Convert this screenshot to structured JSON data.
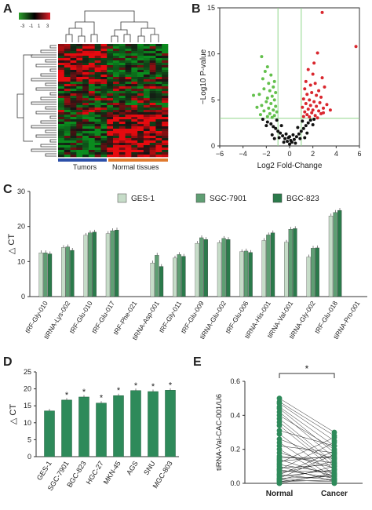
{
  "panels": {
    "A": "A",
    "B": "B",
    "C": "C",
    "D": "D",
    "E": "E"
  },
  "colors": {
    "gesi": "#c6dcc8",
    "sgc": "#5f9e73",
    "bgc": "#2b7a4b",
    "bar_d": "#2e8a5a",
    "volcano_green": "#63c04c",
    "volcano_red": "#d9272e",
    "volcano_black": "#111111",
    "threshold": "#8fd68a",
    "dot_e": "#2e8a5a",
    "tumor_bar": "#2c4fa8",
    "normal_bar": "#e07a2e"
  },
  "heatmap": {
    "colorkey_ticks": [
      "-3",
      "-1",
      "1",
      "3"
    ],
    "group_labels": [
      "Tumors",
      "Normal tissues"
    ]
  },
  "chart_data": [
    {
      "panel": "A",
      "type": "heatmap",
      "legend": [
        "-3",
        "-1",
        "1",
        "3"
      ],
      "groups": [
        "Tumors",
        "Normal tissues"
      ]
    },
    {
      "panel": "B",
      "type": "scatter",
      "xlabel": "Log2 Fold-Change",
      "ylabel": "−Log10 P-value",
      "xlim": [
        -6,
        6
      ],
      "ylim": [
        0,
        15
      ],
      "xticks": [
        "−6",
        "−4",
        "−2",
        "0",
        "2",
        "4",
        "6"
      ],
      "yticks": [
        "0",
        "5",
        "10",
        "15"
      ],
      "thresholds": {
        "x": [
          -1,
          1
        ],
        "y": 3
      },
      "series": [
        {
          "color": "green",
          "points": [
            [
              -2.4,
              9.7
            ],
            [
              -1.9,
              8.6
            ],
            [
              -2.1,
              8.1
            ],
            [
              -1.6,
              7.7
            ],
            [
              -2.3,
              7.3
            ],
            [
              -1.3,
              7.0
            ],
            [
              -1.8,
              6.8
            ],
            [
              -1.4,
              6.4
            ],
            [
              -2.2,
              6.2
            ],
            [
              -1.7,
              6.0
            ],
            [
              -1.2,
              5.8
            ],
            [
              -2.6,
              5.6
            ],
            [
              -1.5,
              5.4
            ],
            [
              -1.9,
              5.2
            ],
            [
              -1.3,
              5.0
            ],
            [
              -2.0,
              4.8
            ],
            [
              -1.6,
              4.6
            ],
            [
              -2.4,
              4.4
            ],
            [
              -1.2,
              4.3
            ],
            [
              -1.8,
              4.1
            ],
            [
              -1.4,
              3.9
            ],
            [
              -2.2,
              3.8
            ],
            [
              -1.1,
              3.7
            ],
            [
              -1.7,
              3.5
            ],
            [
              -2.5,
              3.4
            ],
            [
              -1.3,
              3.3
            ],
            [
              -1.9,
              3.2
            ],
            [
              -3.1,
              5.5
            ],
            [
              -2.8,
              4.2
            ],
            [
              -1.5,
              3.1
            ]
          ]
        },
        {
          "color": "red",
          "points": [
            [
              2.8,
              14.5
            ],
            [
              5.7,
              10.8
            ],
            [
              2.4,
              10.1
            ],
            [
              2.1,
              9.0
            ],
            [
              1.6,
              8.3
            ],
            [
              2.0,
              7.8
            ],
            [
              2.8,
              7.4
            ],
            [
              1.4,
              7.0
            ],
            [
              2.2,
              6.8
            ],
            [
              1.8,
              6.6
            ],
            [
              3.0,
              6.4
            ],
            [
              1.3,
              6.2
            ],
            [
              2.5,
              6.0
            ],
            [
              1.9,
              5.8
            ],
            [
              1.5,
              5.6
            ],
            [
              2.3,
              5.5
            ],
            [
              2.7,
              5.3
            ],
            [
              1.2,
              5.1
            ],
            [
              1.7,
              5.0
            ],
            [
              2.1,
              4.8
            ],
            [
              2.6,
              4.7
            ],
            [
              1.4,
              4.6
            ],
            [
              3.2,
              4.5
            ],
            [
              1.8,
              4.4
            ],
            [
              2.3,
              4.3
            ],
            [
              1.1,
              4.2
            ],
            [
              2.9,
              4.1
            ],
            [
              1.6,
              4.0
            ],
            [
              2.0,
              3.9
            ],
            [
              2.5,
              3.8
            ],
            [
              1.3,
              3.7
            ],
            [
              1.9,
              3.6
            ],
            [
              2.7,
              3.5
            ],
            [
              1.5,
              3.4
            ],
            [
              2.2,
              3.3
            ],
            [
              1.2,
              3.2
            ],
            [
              3.5,
              3.9
            ],
            [
              1.7,
              3.15
            ],
            [
              2.4,
              3.05
            ],
            [
              2.9,
              3.6
            ]
          ]
        },
        {
          "color": "black",
          "points": [
            [
              -2.3,
              2.9
            ],
            [
              -1.9,
              2.6
            ],
            [
              -1.6,
              2.4
            ],
            [
              -1.4,
              2.1
            ],
            [
              -1.2,
              1.9
            ],
            [
              -1.0,
              1.6
            ],
            [
              -0.8,
              1.4
            ],
            [
              -0.6,
              1.1
            ],
            [
              -0.4,
              0.8
            ],
            [
              -0.2,
              0.5
            ],
            [
              0.0,
              0.2
            ],
            [
              0.2,
              0.4
            ],
            [
              0.4,
              0.7
            ],
            [
              0.6,
              1.0
            ],
            [
              0.8,
              1.3
            ],
            [
              1.0,
              1.6
            ],
            [
              1.2,
              1.9
            ],
            [
              1.4,
              2.2
            ],
            [
              1.6,
              2.5
            ],
            [
              1.8,
              2.8
            ],
            [
              2.1,
              2.9
            ],
            [
              -1.1,
              2.8
            ],
            [
              -0.7,
              2.2
            ],
            [
              -0.3,
              1.3
            ],
            [
              0.3,
              1.2
            ],
            [
              0.7,
              2.0
            ],
            [
              1.1,
              2.7
            ],
            [
              -0.9,
              0.9
            ],
            [
              0.9,
              0.8
            ],
            [
              -0.5,
              0.4
            ],
            [
              0.5,
              0.3
            ],
            [
              -1.5,
              1.2
            ],
            [
              1.5,
              1.4
            ],
            [
              -2.0,
              2.2
            ],
            [
              2.0,
              2.3
            ],
            [
              -0.1,
              0.9
            ],
            [
              0.1,
              0.6
            ],
            [
              -1.3,
              0.8
            ],
            [
              1.3,
              0.9
            ],
            [
              0.0,
              1.0
            ]
          ]
        }
      ]
    },
    {
      "panel": "C",
      "type": "bar",
      "ylabel": "△ CT",
      "ylim": [
        0,
        30
      ],
      "yticks": [
        "0",
        "10",
        "20",
        "30"
      ],
      "categories": [
        "tRF-Gly-010",
        "tiRNA-Lys-002",
        "tRF-Glu-010",
        "tRF-Glu-017",
        "tRF-Phe-021",
        "tiRNA-Asp-001",
        "tRF-Gly-011",
        "tRF-Glu-009",
        "tiRNA-Glu-002",
        "tRF-Glu-006",
        "tiRNA-His-001",
        "tiRNA-Val-001",
        "tiRNA-Gly-002",
        "tRF-Glu-018",
        "tiRNA-Pro-001"
      ],
      "series": [
        {
          "name": "GES-1",
          "values": [
            12.5,
            14.0,
            17.5,
            18.0,
            0,
            9.6,
            11.0,
            15.2,
            15.4,
            12.8,
            16.0,
            15.5,
            11.3,
            23.0,
            0
          ]
        },
        {
          "name": "SGC-7901",
          "values": [
            12.5,
            14.2,
            18.2,
            18.8,
            0,
            11.8,
            12.0,
            16.8,
            16.6,
            13.0,
            17.6,
            19.2,
            13.8,
            24.0,
            0
          ]
        },
        {
          "name": "BGC-823",
          "values": [
            12.2,
            13.2,
            18.4,
            19.0,
            0,
            8.6,
            11.5,
            16.3,
            16.3,
            12.6,
            18.2,
            19.4,
            13.9,
            24.6,
            0
          ]
        }
      ]
    },
    {
      "panel": "D",
      "type": "bar",
      "ylabel": "△ CT",
      "ylim": [
        0,
        25
      ],
      "yticks": [
        "0",
        "5",
        "10",
        "15",
        "20",
        "25"
      ],
      "categories": [
        "GES-1",
        "SGC-7901",
        "BGC-823",
        "HGC-27",
        "MKN-45",
        "AGS",
        "SNU",
        "MGC-803"
      ],
      "values": [
        13.5,
        16.7,
        17.6,
        15.8,
        18.0,
        19.5,
        19.2,
        19.6
      ],
      "significance": [
        "",
        "*",
        "*",
        "*",
        "*",
        "*",
        "*",
        "*"
      ]
    },
    {
      "panel": "E",
      "type": "scatter",
      "ylabel": "tiRNA-Val-CAC-001/U6",
      "categories": [
        "Normal",
        "Cancer"
      ],
      "ylim": [
        0,
        0.6
      ],
      "yticks": [
        "0.0",
        "0.2",
        "0.4",
        "0.6"
      ],
      "significance": "*",
      "pairs": [
        [
          0.5,
          0.3
        ],
        [
          0.48,
          0.28
        ],
        [
          0.47,
          0.25
        ],
        [
          0.45,
          0.22
        ],
        [
          0.44,
          0.18
        ],
        [
          0.42,
          0.15
        ],
        [
          0.4,
          0.2
        ],
        [
          0.38,
          0.12
        ],
        [
          0.36,
          0.1
        ],
        [
          0.34,
          0.08
        ],
        [
          0.31,
          0.22
        ],
        [
          0.29,
          0.05
        ],
        [
          0.26,
          0.14
        ],
        [
          0.24,
          0.03
        ],
        [
          0.22,
          0.18
        ],
        [
          0.2,
          0.02
        ],
        [
          0.18,
          0.09
        ],
        [
          0.16,
          0.12
        ],
        [
          0.14,
          0.04
        ],
        [
          0.13,
          0.16
        ],
        [
          0.11,
          0.06
        ],
        [
          0.1,
          0.01
        ],
        [
          0.09,
          0.11
        ],
        [
          0.08,
          0.03
        ],
        [
          0.07,
          0.07
        ],
        [
          0.06,
          0.13
        ],
        [
          0.05,
          0.02
        ],
        [
          0.04,
          0.08
        ],
        [
          0.03,
          0.04
        ],
        [
          0.02,
          0.1
        ],
        [
          0.02,
          0.01
        ],
        [
          0.01,
          0.05
        ],
        [
          0.01,
          0.02
        ],
        [
          0.0,
          0.06
        ],
        [
          0.0,
          0.0
        ],
        [
          0.03,
          0.17
        ],
        [
          0.05,
          0.19
        ],
        [
          0.08,
          0.24
        ],
        [
          0.12,
          0.27
        ],
        [
          0.15,
          0.15
        ]
      ]
    }
  ]
}
